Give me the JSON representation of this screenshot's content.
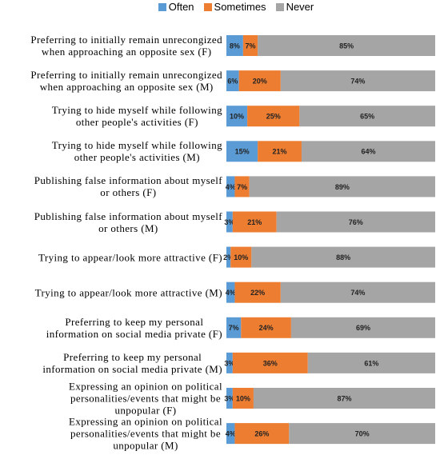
{
  "chart_data": {
    "type": "stacked_bar_horizontal",
    "categories": [
      "Preferring to initially remain unrecongized\nwhen approaching an opposite sex (F)",
      "Preferring to initially remain unrecongized\nwhen approaching an opposite sex (M)",
      "Trying to hide myself while following\nother people's activities (F)",
      "Trying to hide myself while following\nother people's activities (M)",
      "Publishing false information about myself\nor others (F)",
      "Publishing false information about myself\nor others (M)",
      "Trying to appear/look more attractive (F)",
      "Trying to appear/look more attractive (M)",
      "Preferring to keep my personal\ninformation on social media private (F)",
      "Preferring to keep my personal\ninformation on social media private (M)",
      "Expressing an opinion on political\npersonalities/events that might be\nunpopular (F)",
      "Expressing an opinion on political\npersonalities/events that might be\nunpopular (M)"
    ],
    "series": [
      {
        "name": "Often",
        "color": "#5b9bd5",
        "values": [
          8,
          6,
          10,
          15,
          4,
          3,
          2,
          4,
          7,
          3,
          3,
          4
        ],
        "value_labels": [
          "8%",
          "6%",
          "10%",
          "15%",
          "4%",
          "3%",
          "2%",
          "4%",
          "7%",
          "3%",
          "3%",
          "4%"
        ]
      },
      {
        "name": "Sometimes",
        "color": "#ed7d31",
        "values": [
          7,
          20,
          25,
          21,
          7,
          21,
          10,
          22,
          24,
          36,
          10,
          26
        ],
        "value_labels": [
          "7%",
          "20%",
          "25%",
          "21%",
          "7%",
          "21%",
          "10%",
          "22%",
          "24%",
          "36%",
          "10%",
          "26%"
        ]
      },
      {
        "name": "Never",
        "color": "#a5a5a5",
        "values": [
          85,
          74,
          65,
          64,
          89,
          76,
          88,
          74,
          69,
          61,
          87,
          70
        ],
        "value_labels": [
          "85%",
          "74%",
          "65%",
          "64%",
          "89%",
          "76%",
          "88%",
          "74%",
          "69%",
          "61%",
          "87%",
          "70%"
        ]
      }
    ],
    "xlim": [
      0,
      100
    ],
    "legend": "top"
  }
}
